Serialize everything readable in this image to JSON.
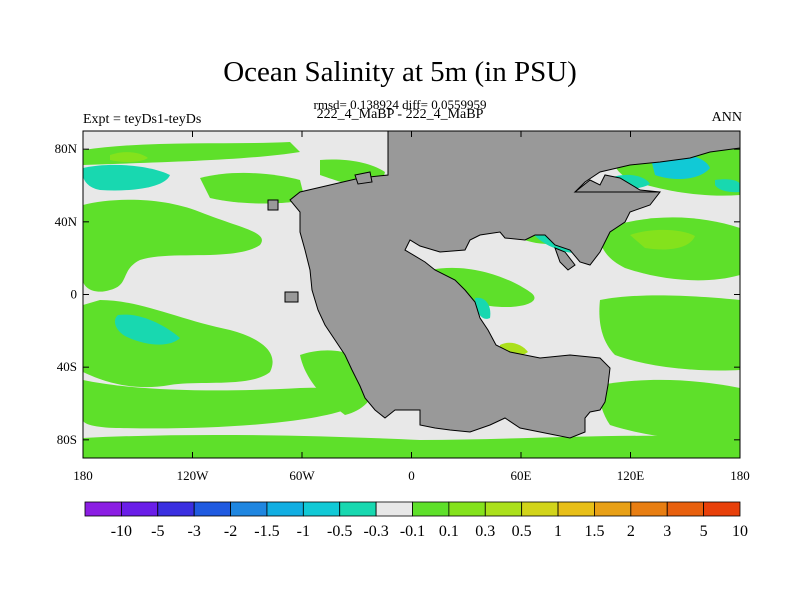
{
  "chart_data": {
    "type": "heatmap",
    "title": "Ocean Salinity at 5m (in PSU)",
    "stats": "rmsd= 0.138924 diff= 0.0559959",
    "subtitle": "222_4_MaBP - 222_4_MaBP",
    "left_label": "Expt = teyDs1-teyDs",
    "right_label": "ANN",
    "xlim": [
      -180,
      180
    ],
    "ylim": [
      -90,
      90
    ],
    "x_ticks": [
      {
        "value": -180,
        "label": "180"
      },
      {
        "value": -120,
        "label": "120W"
      },
      {
        "value": -60,
        "label": "60W"
      },
      {
        "value": 0,
        "label": "0"
      },
      {
        "value": 60,
        "label": "60E"
      },
      {
        "value": 120,
        "label": "120E"
      },
      {
        "value": 180,
        "label": "180"
      }
    ],
    "y_ticks": [
      {
        "value": 80,
        "label": "80N"
      },
      {
        "value": 40,
        "label": "40N"
      },
      {
        "value": 0,
        "label": "0"
      },
      {
        "value": -40,
        "label": "40S"
      },
      {
        "value": -80,
        "label": "80S"
      }
    ],
    "colorbar": {
      "colors": [
        "#8b1ee3",
        "#6a1ee8",
        "#3a2fe0",
        "#1f5ae0",
        "#1f86e0",
        "#11aee2",
        "#11c9d6",
        "#18d8b0",
        "#e8e8e8",
        "#5ee02a",
        "#84e21c",
        "#abe01b",
        "#d2d41a",
        "#e8bf18",
        "#e8a016",
        "#e87e12",
        "#e8600e",
        "#e8400a"
      ],
      "labels": [
        "-10",
        "-5",
        "-3",
        "-2",
        "-1.5",
        "-1",
        "-0.5",
        "-0.3",
        "-0.1",
        "0.1",
        "0.3",
        "0.5",
        "1",
        "1.5",
        "2",
        "3",
        "5",
        "10"
      ]
    },
    "land_color": "#999999",
    "ocean_zero_color": "#e8e8e8"
  }
}
